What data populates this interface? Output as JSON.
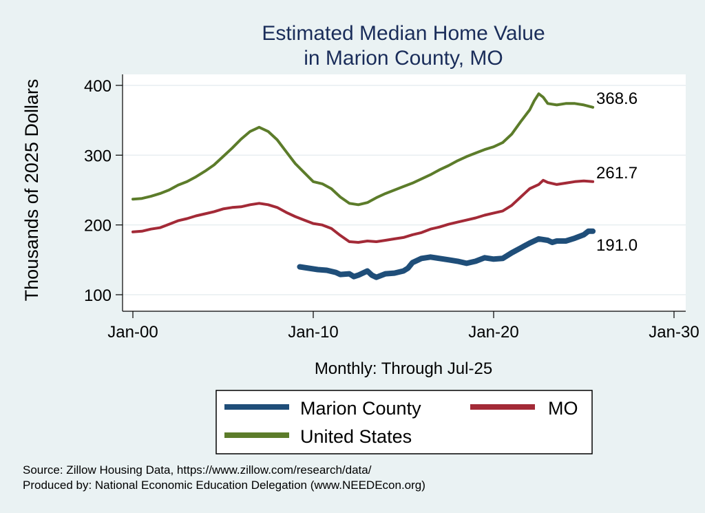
{
  "chart_data": {
    "type": "line",
    "title": [
      "Estimated Median Home Value",
      "in Marion County, MO"
    ],
    "xlabel": "Monthly: Through Jul-25",
    "ylabel": "Thousands of 2025 Dollars",
    "x_ticks": [
      "Jan-00",
      "Jan-10",
      "Jan-20",
      "Jan-30"
    ],
    "x_range": [
      2000,
      2030
    ],
    "y_ticks": [
      100,
      200,
      300,
      400
    ],
    "ylim": [
      90,
      410
    ],
    "grid": true,
    "legend_position": "bottom",
    "series": [
      {
        "name": "Marion County",
        "color": "#1f4e79",
        "end_label": "191.0",
        "points": [
          [
            2009.25,
            140
          ],
          [
            2009.75,
            138
          ],
          [
            2010.25,
            136
          ],
          [
            2010.75,
            135
          ],
          [
            2011.25,
            132
          ],
          [
            2011.5,
            129
          ],
          [
            2012.0,
            130
          ],
          [
            2012.25,
            126
          ],
          [
            2012.5,
            128
          ],
          [
            2013.0,
            134
          ],
          [
            2013.25,
            128
          ],
          [
            2013.5,
            125
          ],
          [
            2014.0,
            130
          ],
          [
            2014.5,
            131
          ],
          [
            2015.0,
            134
          ],
          [
            2015.25,
            138
          ],
          [
            2015.5,
            146
          ],
          [
            2016.0,
            152
          ],
          [
            2016.5,
            154
          ],
          [
            2017.0,
            152
          ],
          [
            2017.5,
            150
          ],
          [
            2018.0,
            148
          ],
          [
            2018.5,
            145
          ],
          [
            2019.0,
            148
          ],
          [
            2019.5,
            153
          ],
          [
            2020.0,
            151
          ],
          [
            2020.5,
            152
          ],
          [
            2021.0,
            160
          ],
          [
            2021.5,
            167
          ],
          [
            2022.0,
            174
          ],
          [
            2022.5,
            180
          ],
          [
            2023.0,
            178
          ],
          [
            2023.25,
            175
          ],
          [
            2023.5,
            177
          ],
          [
            2024.0,
            177
          ],
          [
            2024.5,
            181
          ],
          [
            2025.0,
            186
          ],
          [
            2025.25,
            191
          ],
          [
            2025.5,
            191
          ]
        ]
      },
      {
        "name": "MO",
        "color": "#a32a37",
        "end_label": "261.7",
        "points": [
          [
            2000,
            190
          ],
          [
            2000.5,
            191
          ],
          [
            2001,
            194
          ],
          [
            2001.5,
            196
          ],
          [
            2002,
            201
          ],
          [
            2002.5,
            206
          ],
          [
            2003,
            209
          ],
          [
            2003.5,
            213
          ],
          [
            2004,
            216
          ],
          [
            2004.5,
            219
          ],
          [
            2005,
            223
          ],
          [
            2005.5,
            225
          ],
          [
            2006,
            226
          ],
          [
            2006.5,
            229
          ],
          [
            2007,
            231
          ],
          [
            2007.5,
            229
          ],
          [
            2008,
            225
          ],
          [
            2008.5,
            218
          ],
          [
            2009,
            212
          ],
          [
            2009.5,
            207
          ],
          [
            2010,
            202
          ],
          [
            2010.5,
            200
          ],
          [
            2011,
            195
          ],
          [
            2011.5,
            185
          ],
          [
            2012,
            176
          ],
          [
            2012.5,
            175
          ],
          [
            2013,
            177
          ],
          [
            2013.5,
            176
          ],
          [
            2014,
            178
          ],
          [
            2014.5,
            180
          ],
          [
            2015,
            182
          ],
          [
            2015.5,
            186
          ],
          [
            2016,
            189
          ],
          [
            2016.5,
            194
          ],
          [
            2017,
            197
          ],
          [
            2017.5,
            201
          ],
          [
            2018,
            204
          ],
          [
            2018.5,
            207
          ],
          [
            2019,
            210
          ],
          [
            2019.5,
            214
          ],
          [
            2020,
            217
          ],
          [
            2020.5,
            220
          ],
          [
            2021,
            228
          ],
          [
            2021.5,
            240
          ],
          [
            2022,
            252
          ],
          [
            2022.5,
            258
          ],
          [
            2022.75,
            264
          ],
          [
            2023,
            261
          ],
          [
            2023.5,
            258
          ],
          [
            2024,
            260
          ],
          [
            2024.5,
            262
          ],
          [
            2025,
            263
          ],
          [
            2025.5,
            262
          ]
        ]
      },
      {
        "name": "United States",
        "color": "#5c7c2a",
        "end_label": "368.6",
        "points": [
          [
            2000,
            237
          ],
          [
            2000.5,
            238
          ],
          [
            2001,
            241
          ],
          [
            2001.5,
            245
          ],
          [
            2002,
            250
          ],
          [
            2002.5,
            257
          ],
          [
            2003,
            262
          ],
          [
            2003.5,
            269
          ],
          [
            2004,
            277
          ],
          [
            2004.5,
            286
          ],
          [
            2005,
            298
          ],
          [
            2005.5,
            310
          ],
          [
            2006,
            323
          ],
          [
            2006.5,
            334
          ],
          [
            2007,
            340
          ],
          [
            2007.5,
            334
          ],
          [
            2008,
            322
          ],
          [
            2008.5,
            305
          ],
          [
            2009,
            288
          ],
          [
            2009.5,
            275
          ],
          [
            2010,
            262
          ],
          [
            2010.5,
            259
          ],
          [
            2011,
            252
          ],
          [
            2011.5,
            240
          ],
          [
            2012,
            231
          ],
          [
            2012.5,
            229
          ],
          [
            2013,
            232
          ],
          [
            2013.5,
            239
          ],
          [
            2014,
            245
          ],
          [
            2014.5,
            250
          ],
          [
            2015,
            255
          ],
          [
            2015.5,
            260
          ],
          [
            2016,
            266
          ],
          [
            2016.5,
            272
          ],
          [
            2017,
            279
          ],
          [
            2017.5,
            285
          ],
          [
            2018,
            292
          ],
          [
            2018.5,
            298
          ],
          [
            2019,
            303
          ],
          [
            2019.5,
            308
          ],
          [
            2020,
            312
          ],
          [
            2020.5,
            318
          ],
          [
            2021,
            330
          ],
          [
            2021.5,
            348
          ],
          [
            2022,
            365
          ],
          [
            2022.25,
            378
          ],
          [
            2022.5,
            388
          ],
          [
            2022.75,
            383
          ],
          [
            2023,
            374
          ],
          [
            2023.5,
            372
          ],
          [
            2024,
            374
          ],
          [
            2024.5,
            374
          ],
          [
            2025,
            372
          ],
          [
            2025.5,
            368.6
          ]
        ]
      }
    ]
  },
  "footnote": {
    "source": "Source: Zillow Housing Data, https://www.zillow.com/research/data/",
    "produced": "Produced by: National Economic Education Delegation (www.NEEDEcon.org)"
  }
}
